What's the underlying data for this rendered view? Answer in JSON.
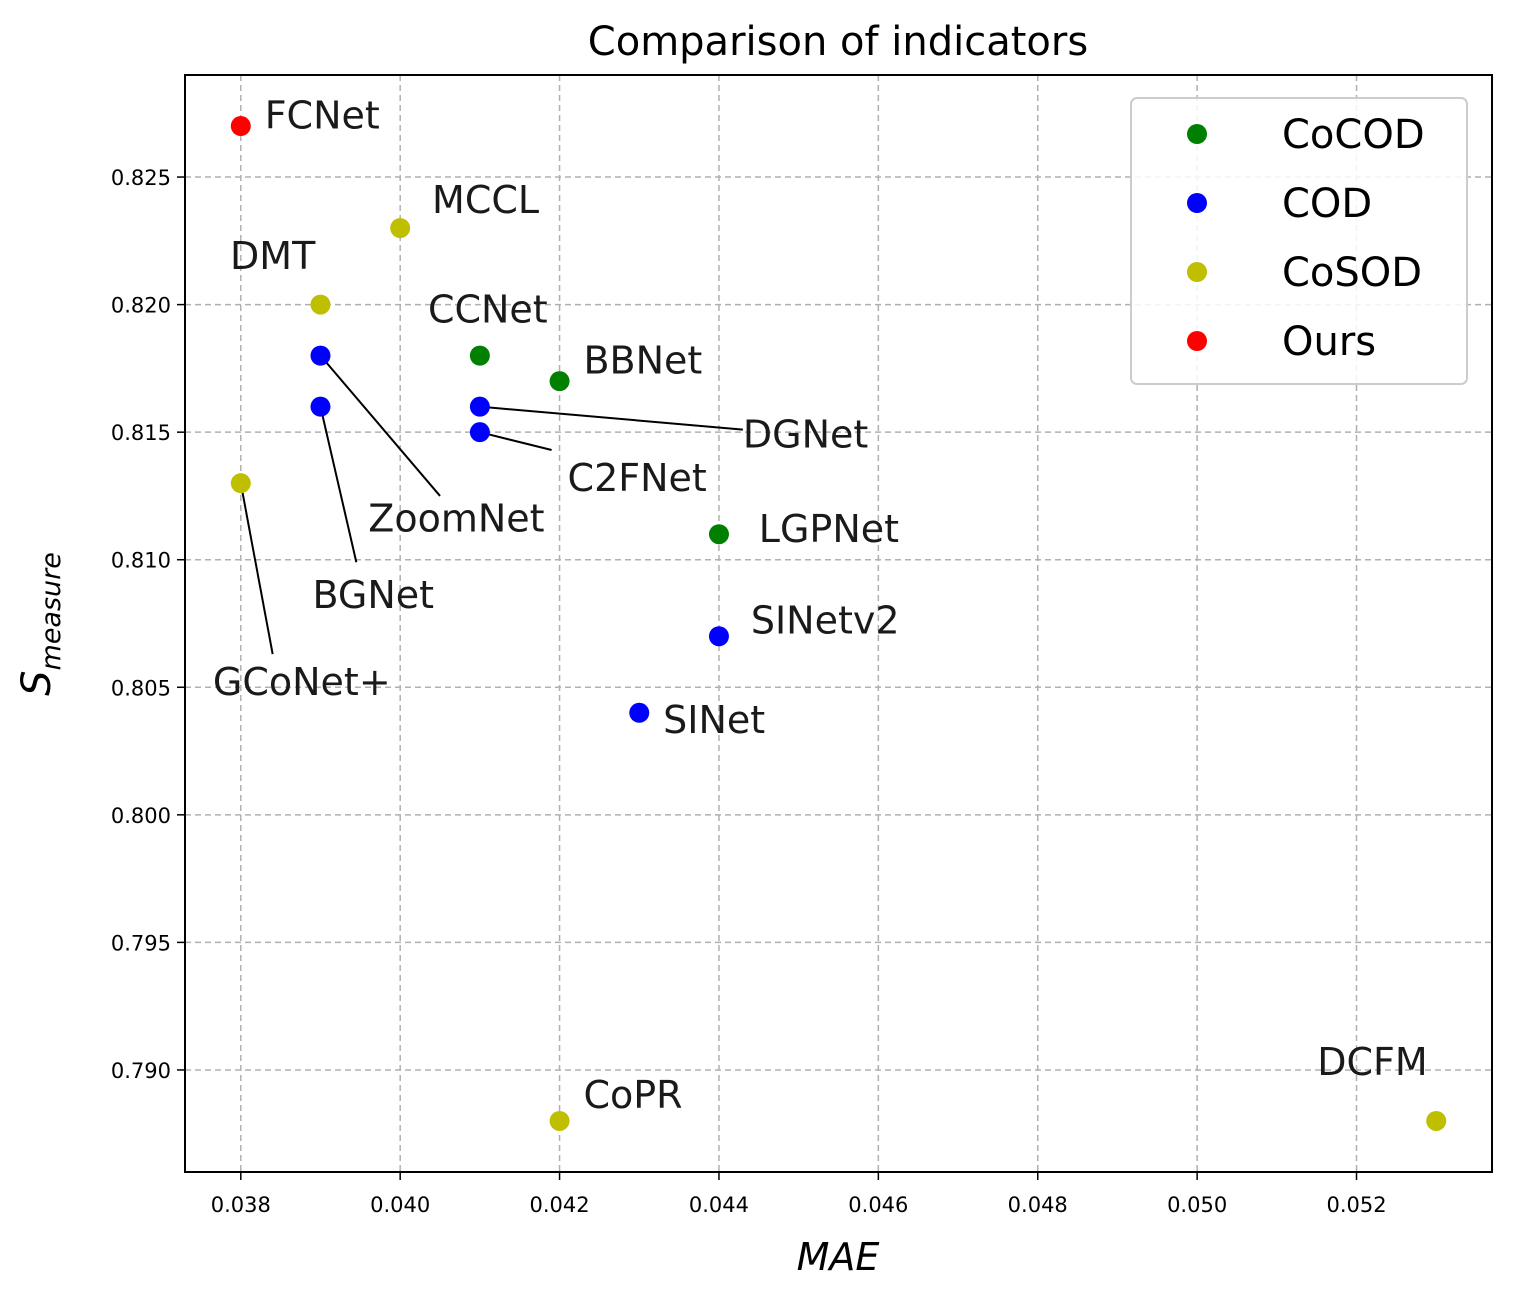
{
  "chart_data": {
    "type": "scatter",
    "title": "Comparison of indicators",
    "xlabel": "MAE",
    "ylabel_main": "S",
    "ylabel_sub": "measure",
    "xlim": [
      0.0373,
      0.0537
    ],
    "ylim": [
      0.786,
      0.829
    ],
    "xticks": [
      0.038,
      0.04,
      0.042,
      0.044,
      0.046,
      0.048,
      0.05,
      0.052
    ],
    "xtick_labels": [
      "0.038",
      "0.040",
      "0.042",
      "0.044",
      "0.046",
      "0.048",
      "0.050",
      "0.052"
    ],
    "yticks": [
      0.79,
      0.795,
      0.8,
      0.805,
      0.81,
      0.815,
      0.82,
      0.825
    ],
    "ytick_labels": [
      "0.790",
      "0.795",
      "0.800",
      "0.805",
      "0.810",
      "0.815",
      "0.820",
      "0.825"
    ],
    "grid": true,
    "legend_position": "top-right",
    "legend": [
      {
        "label": "CoCOD",
        "color": "#008000"
      },
      {
        "label": "COD",
        "color": "#0000ff"
      },
      {
        "label": "CoSOD",
        "color": "#bfbf00"
      },
      {
        "label": "Ours",
        "color": "#ff0000"
      }
    ],
    "points": [
      {
        "name": "FCNet",
        "group": "Ours",
        "x": 0.038,
        "y": 0.827,
        "label_x": 0.0383,
        "label_y": 0.8269,
        "anchor": "start"
      },
      {
        "name": "MCCL",
        "group": "CoSOD",
        "x": 0.04,
        "y": 0.823,
        "label_x": 0.0404,
        "label_y": 0.8236,
        "anchor": "start"
      },
      {
        "name": "DMT",
        "group": "CoSOD",
        "x": 0.039,
        "y": 0.82,
        "label_x": 0.0384,
        "label_y": 0.8214,
        "anchor": "middle"
      },
      {
        "name": "CCNet",
        "group": "CoCOD",
        "x": 0.041,
        "y": 0.818,
        "label_x": 0.0411,
        "label_y": 0.8193,
        "anchor": "middle"
      },
      {
        "name": "BBNet",
        "group": "CoCOD",
        "x": 0.042,
        "y": 0.817,
        "label_x": 0.0423,
        "label_y": 0.8173,
        "anchor": "start"
      },
      {
        "name": "ZoomNet",
        "group": "COD",
        "x": 0.039,
        "y": 0.818,
        "label_x": 0.0396,
        "label_y": 0.8111,
        "anchor": "start",
        "line_to_x": 0.0405,
        "line_to_y": 0.8125
      },
      {
        "name": "BGNet",
        "group": "COD",
        "x": 0.039,
        "y": 0.816,
        "label_x": 0.0389,
        "label_y": 0.8081,
        "anchor": "start",
        "line_to_x": 0.03945,
        "line_to_y": 0.8099
      },
      {
        "name": "DGNet",
        "group": "COD",
        "x": 0.041,
        "y": 0.816,
        "label_x": 0.0443,
        "label_y": 0.8144,
        "anchor": "start",
        "line_to_x": 0.0443,
        "line_to_y": 0.8151
      },
      {
        "name": "C2FNet",
        "group": "COD",
        "x": 0.041,
        "y": 0.815,
        "label_x": 0.0421,
        "label_y": 0.8127,
        "anchor": "start",
        "line_to_x": 0.0419,
        "line_to_y": 0.8143
      },
      {
        "name": "GCoNet+",
        "group": "CoSOD",
        "x": 0.038,
        "y": 0.813,
        "label_x": 0.03765,
        "label_y": 0.8047,
        "anchor": "start",
        "line_to_x": 0.0384,
        "line_to_y": 0.8063
      },
      {
        "name": "LGPNet",
        "group": "CoCOD",
        "x": 0.044,
        "y": 0.811,
        "label_x": 0.0445,
        "label_y": 0.8107,
        "anchor": "start"
      },
      {
        "name": "SINetv2",
        "group": "COD",
        "x": 0.044,
        "y": 0.807,
        "label_x": 0.0444,
        "label_y": 0.8071,
        "anchor": "start"
      },
      {
        "name": "SINet",
        "group": "COD",
        "x": 0.043,
        "y": 0.804,
        "label_x": 0.0433,
        "label_y": 0.8032,
        "anchor": "start"
      },
      {
        "name": "CoPR",
        "group": "CoSOD",
        "x": 0.042,
        "y": 0.788,
        "label_x": 0.0423,
        "label_y": 0.7885,
        "anchor": "start"
      },
      {
        "name": "DCFM",
        "group": "CoSOD",
        "x": 0.053,
        "y": 0.788,
        "label_x": 0.0522,
        "label_y": 0.7898,
        "anchor": "middle"
      }
    ]
  }
}
